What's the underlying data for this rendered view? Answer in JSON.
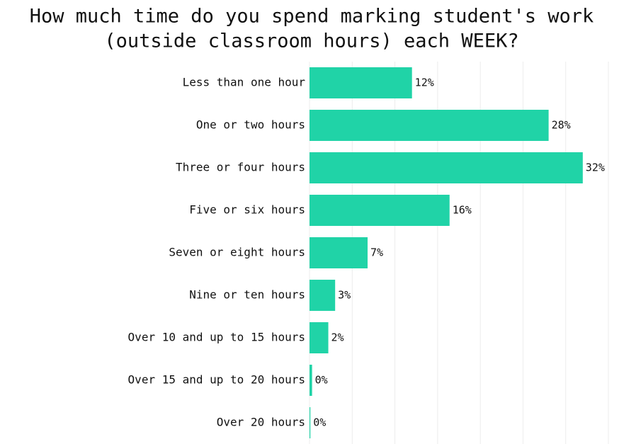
{
  "chart_data": {
    "type": "bar",
    "orientation": "horizontal",
    "title": [
      "How much time do you spend marking student's work",
      "(outside classroom hours) each WEEK?"
    ],
    "categories": [
      "Less than one hour",
      "One or two hours",
      "Three or four hours",
      "Five or six hours",
      "Seven or eight hours",
      "Nine or ten hours",
      "Over 10 and up to 15 hours",
      "Over 15 and up to 20 hours",
      "Over 20 hours"
    ],
    "values": [
      12,
      28,
      32,
      16.4,
      6.8,
      3,
      2.2,
      0.3,
      0.1
    ],
    "value_labels": [
      "12%",
      "28%",
      "32%",
      "16%",
      "7%",
      "3%",
      "2%",
      "0%",
      "0%"
    ],
    "color": "#20d3a7",
    "xlim": [
      0,
      35.5
    ],
    "xticks": [
      0,
      5,
      10,
      15,
      20,
      25,
      30,
      35
    ],
    "grid": true
  }
}
